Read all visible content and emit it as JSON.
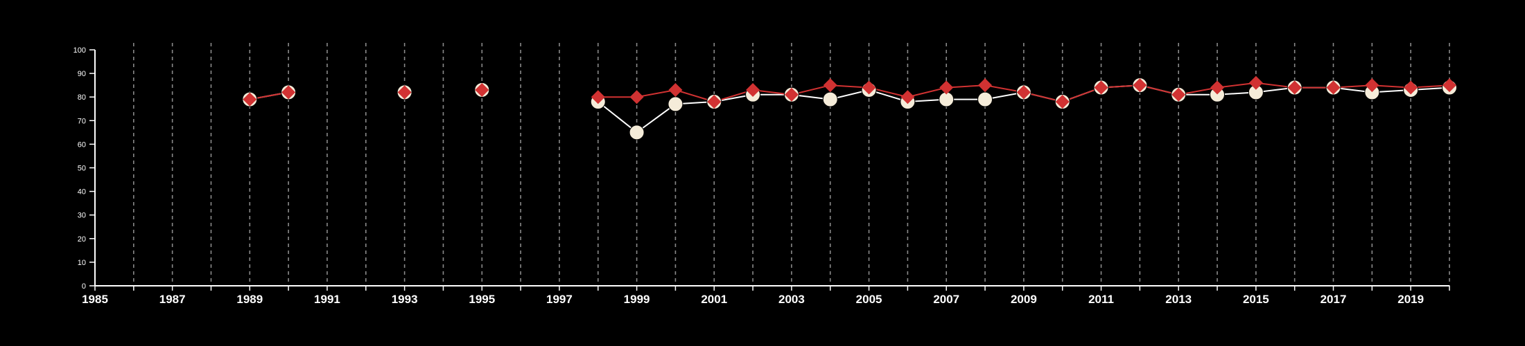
{
  "colors": {
    "background": "#000000",
    "axis": "#ffffff",
    "grid": "#8a8a8a",
    "series_1_line": "#ffffff",
    "series_1_marker": "#f5ecd9",
    "series_2": "#d13232"
  },
  "chart_data": {
    "type": "line",
    "title": "",
    "xlabel": "",
    "ylabel": "",
    "xlim": [
      1985,
      2020
    ],
    "ylim": [
      0,
      100
    ],
    "x_ticks": [
      1985,
      1987,
      1989,
      1991,
      1993,
      1995,
      1997,
      1999,
      2001,
      2003,
      2005,
      2007,
      2009,
      2011,
      2013,
      2015,
      2017,
      2019
    ],
    "y_ticks": [
      0,
      10,
      20,
      30,
      40,
      50,
      60,
      70,
      80,
      90,
      100
    ],
    "grid": "vertical dashed lines at every year",
    "legend": "none",
    "series": [
      {
        "marker": "circle",
        "color": "#f5ecd9",
        "line_color": "#ffffff",
        "points": [
          [
            1989,
            79
          ],
          [
            1990,
            82
          ],
          null,
          [
            1993,
            82
          ],
          null,
          [
            1995,
            83
          ],
          null,
          [
            1998,
            78
          ],
          [
            1999,
            65
          ],
          [
            2000,
            77
          ],
          [
            2001,
            78
          ],
          [
            2002,
            81
          ],
          [
            2003,
            81
          ],
          [
            2004,
            79
          ],
          [
            2005,
            83
          ],
          [
            2006,
            78
          ],
          [
            2007,
            79
          ],
          [
            2008,
            79
          ],
          [
            2009,
            82
          ],
          [
            2010,
            78
          ],
          [
            2011,
            84
          ],
          [
            2012,
            85
          ],
          [
            2013,
            81
          ],
          [
            2014,
            81
          ],
          [
            2015,
            82
          ],
          [
            2016,
            84
          ],
          [
            2017,
            84
          ],
          [
            2018,
            82
          ],
          [
            2019,
            83
          ],
          [
            2020,
            84
          ]
        ]
      },
      {
        "marker": "diamond",
        "color": "#d13232",
        "line_color": "#d13232",
        "points": [
          [
            1989,
            79
          ],
          [
            1990,
            82
          ],
          null,
          [
            1993,
            82
          ],
          null,
          [
            1995,
            83
          ],
          null,
          [
            1998,
            80
          ],
          [
            1999,
            80
          ],
          [
            2000,
            83
          ],
          [
            2001,
            78
          ],
          [
            2002,
            83
          ],
          [
            2003,
            81
          ],
          [
            2004,
            85
          ],
          [
            2005,
            84
          ],
          [
            2006,
            80
          ],
          [
            2007,
            84
          ],
          [
            2008,
            85
          ],
          [
            2009,
            82
          ],
          [
            2010,
            78
          ],
          [
            2011,
            84
          ],
          [
            2012,
            85
          ],
          [
            2013,
            81
          ],
          [
            2014,
            84
          ],
          [
            2015,
            86
          ],
          [
            2016,
            84
          ],
          [
            2017,
            84
          ],
          [
            2018,
            85
          ],
          [
            2019,
            84
          ],
          [
            2020,
            85
          ]
        ]
      }
    ]
  }
}
